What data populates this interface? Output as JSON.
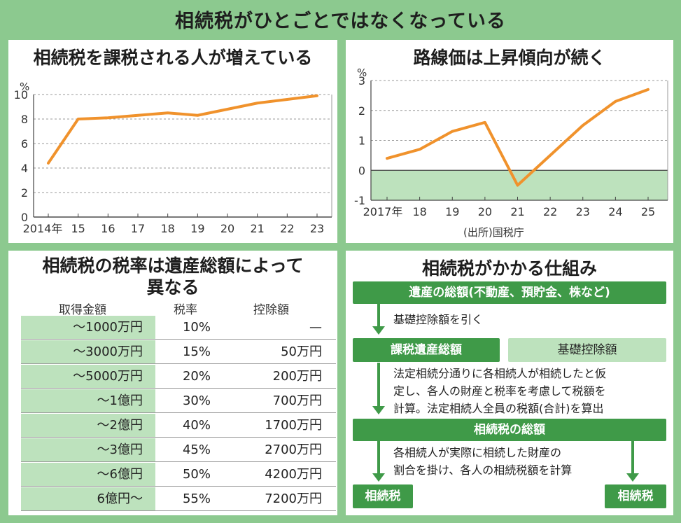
{
  "main_title": "相続税がひとごとではなくなっている",
  "chart_data": [
    {
      "type": "line",
      "title": "相続税を課税される人が増えている",
      "ylabel": "%",
      "categories": [
        "2014年",
        "15",
        "16",
        "17",
        "18",
        "19",
        "20",
        "21",
        "22",
        "23"
      ],
      "values": [
        4.4,
        8.0,
        8.1,
        8.3,
        8.5,
        8.3,
        8.8,
        9.3,
        9.6,
        9.9
      ],
      "ylim": [
        0,
        10
      ],
      "yticks": [
        "0",
        "2",
        "4",
        "6",
        "8",
        "10"
      ],
      "line_color": "#f0922c"
    },
    {
      "type": "line",
      "title": "路線価は上昇傾向が続く",
      "ylabel": "%",
      "categories": [
        "2017年",
        "18",
        "19",
        "20",
        "21",
        "22",
        "23",
        "24",
        "25"
      ],
      "values": [
        0.4,
        0.7,
        1.3,
        1.6,
        -0.5,
        0.5,
        1.5,
        2.3,
        2.7
      ],
      "ylim": [
        -1,
        3
      ],
      "yticks": [
        "-1",
        "0",
        "1",
        "2",
        "3"
      ],
      "source": "(出所)国税庁",
      "line_color": "#f0922c",
      "negative_fill": "#bde2bd"
    }
  ],
  "rate_table": {
    "title_line1": "相続税の税率は遺産総額によって",
    "title_line2": "異なる",
    "headers": {
      "amount": "取得金額",
      "rate": "税率",
      "deduction": "控除額"
    },
    "rows": [
      {
        "amount": "〜1000万円",
        "rate": "10%",
        "deduction": "—"
      },
      {
        "amount": "〜3000万円",
        "rate": "15%",
        "deduction": "50万円"
      },
      {
        "amount": "〜5000万円",
        "rate": "20%",
        "deduction": "200万円"
      },
      {
        "amount": "〜1億円",
        "rate": "30%",
        "deduction": "700万円"
      },
      {
        "amount": "〜2億円",
        "rate": "40%",
        "deduction": "1700万円"
      },
      {
        "amount": "〜3億円",
        "rate": "45%",
        "deduction": "2700万円"
      },
      {
        "amount": "〜6億円",
        "rate": "50%",
        "deduction": "4200万円"
      },
      {
        "amount": "6億円〜",
        "rate": "55%",
        "deduction": "7200万円"
      }
    ]
  },
  "flow": {
    "title": "相続税がかかる仕組み",
    "box1": "遺産の総額(不動産、預貯金、株など)",
    "note1": "基礎控除額を引く",
    "box2": "課税遺産総額",
    "box2_side": "基礎控除額",
    "note2_line1": "法定相続分通りに各相続人が相続したと仮",
    "note2_line2": "定し、各人の財産と税率を考慮して税額を",
    "note2_line3": "計算。法定相続人全員の税額(合計)を算出",
    "box3": "相続税の総額",
    "note3_line1": "各相続人が実際に相続した財産の",
    "note3_line2": "割合を掛け、各人の相続税額を計算",
    "box4_left": "相続税",
    "box4_right": "相続税"
  },
  "colors": {
    "green": "#3f9a48",
    "light_green": "#bde2bd",
    "bg": "#8cc98f",
    "line": "#f0922c"
  }
}
